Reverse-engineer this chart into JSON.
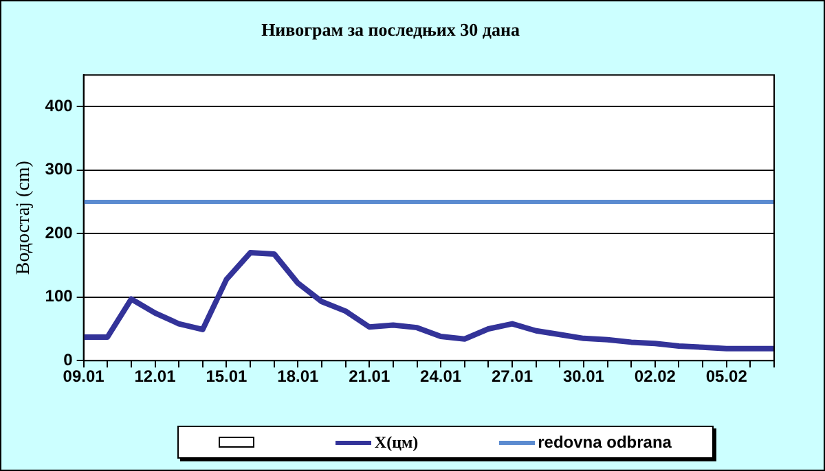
{
  "chart_data": {
    "type": "line",
    "title": "Нивограм за последњих 30 дана",
    "ylabel": "Водостај (cm)",
    "categories": [
      "09.01",
      null,
      null,
      "12.01",
      null,
      null,
      "15.01",
      null,
      null,
      "18.01",
      null,
      null,
      "21.01",
      null,
      null,
      "24.01",
      null,
      null,
      "27.01",
      null,
      null,
      "30.01",
      null,
      null,
      "02.02",
      null,
      null,
      "05.02",
      null,
      null
    ],
    "series": [
      {
        "name": "X(цм)",
        "color": "#333399",
        "values": [
          37,
          37,
          97,
          75,
          58,
          49,
          128,
          170,
          168,
          122,
          93,
          78,
          53,
          56,
          52,
          38,
          34,
          50,
          58,
          47,
          41,
          35,
          33,
          29,
          27,
          23,
          21,
          19,
          19,
          19
        ]
      }
    ],
    "ylim": [
      0,
      450
    ],
    "yticks": [
      0,
      100,
      200,
      300,
      400
    ],
    "grid": "y",
    "legend": "bottom",
    "marker": "none",
    "line_style": "solid",
    "ref_lines": [
      {
        "axis": "y",
        "value": 250,
        "label": "redovna odbrana",
        "color": "#5b8bd0"
      }
    ]
  }
}
